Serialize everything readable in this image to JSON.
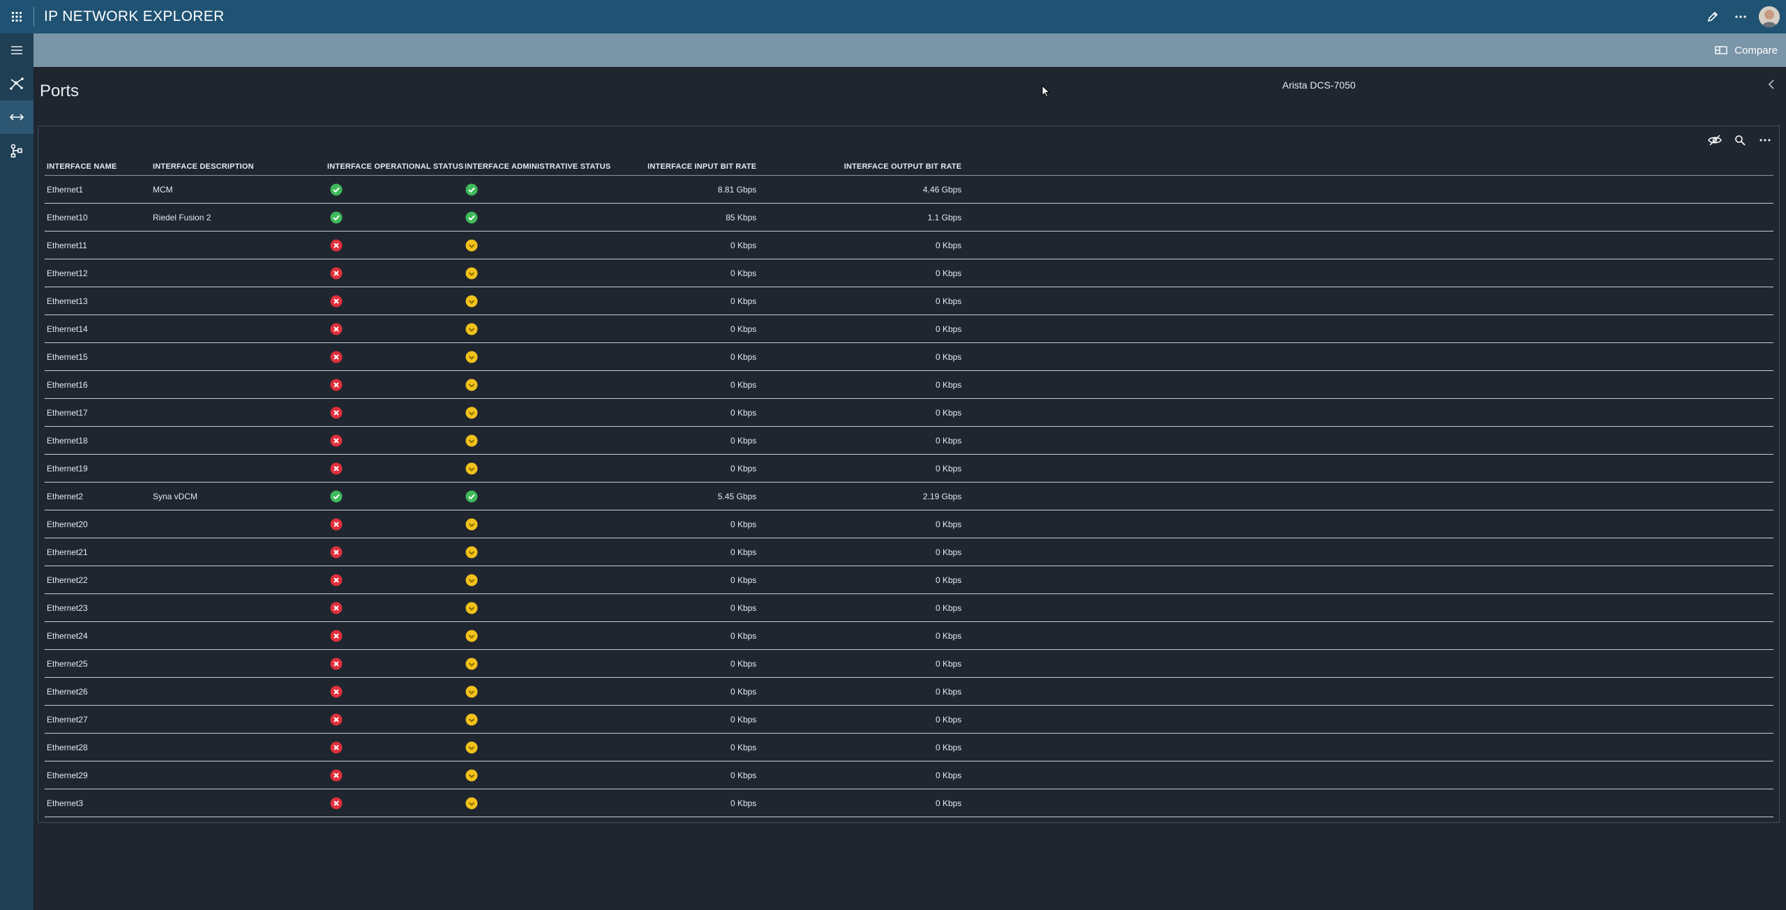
{
  "app": {
    "title": "IP NETWORK EXPLORER"
  },
  "topbar": {
    "icons": [
      "apps-icon",
      "edit-icon",
      "more-icon",
      "avatar"
    ]
  },
  "sidenav": {
    "items": [
      {
        "name": "topology-icon",
        "active": false
      },
      {
        "name": "ports-icon",
        "active": true
      },
      {
        "name": "hierarchy-icon",
        "active": false
      }
    ]
  },
  "subbar": {
    "compare_label": "Compare"
  },
  "page": {
    "title": "Ports",
    "device": "Arista DCS-7050"
  },
  "table": {
    "columns": {
      "name": "INTERFACE NAME",
      "description": "INTERFACE DESCRIPTION",
      "oper_status": "INTERFACE OPERATIONAL STATUS",
      "admin_status": "INTERFACE ADMINISTRATIVE STATUS",
      "input_rate": "INTERFACE INPUT BIT RATE",
      "output_rate": "INTERFACE OUTPUT BIT RATE"
    },
    "rows": [
      {
        "name": "Ethernet1",
        "description": "MCM",
        "oper": "up",
        "admin": "up",
        "input": "8.81 Gbps",
        "output": "4.46 Gbps"
      },
      {
        "name": "Ethernet10",
        "description": "Riedel Fusion 2",
        "oper": "up",
        "admin": "up",
        "input": "85 Kbps",
        "output": "1.1 Gbps"
      },
      {
        "name": "Ethernet11",
        "description": "",
        "oper": "down",
        "admin": "warn",
        "input": "0 Kbps",
        "output": "0 Kbps"
      },
      {
        "name": "Ethernet12",
        "description": "",
        "oper": "down",
        "admin": "warn",
        "input": "0 Kbps",
        "output": "0 Kbps"
      },
      {
        "name": "Ethernet13",
        "description": "",
        "oper": "down",
        "admin": "warn",
        "input": "0 Kbps",
        "output": "0 Kbps"
      },
      {
        "name": "Ethernet14",
        "description": "",
        "oper": "down",
        "admin": "warn",
        "input": "0 Kbps",
        "output": "0 Kbps"
      },
      {
        "name": "Ethernet15",
        "description": "",
        "oper": "down",
        "admin": "warn",
        "input": "0 Kbps",
        "output": "0 Kbps"
      },
      {
        "name": "Ethernet16",
        "description": "",
        "oper": "down",
        "admin": "warn",
        "input": "0 Kbps",
        "output": "0 Kbps"
      },
      {
        "name": "Ethernet17",
        "description": "",
        "oper": "down",
        "admin": "warn",
        "input": "0 Kbps",
        "output": "0 Kbps"
      },
      {
        "name": "Ethernet18",
        "description": "",
        "oper": "down",
        "admin": "warn",
        "input": "0 Kbps",
        "output": "0 Kbps"
      },
      {
        "name": "Ethernet19",
        "description": "",
        "oper": "down",
        "admin": "warn",
        "input": "0 Kbps",
        "output": "0 Kbps"
      },
      {
        "name": "Ethernet2",
        "description": "Syna vDCM",
        "oper": "up",
        "admin": "up",
        "input": "5.45 Gbps",
        "output": "2.19 Gbps"
      },
      {
        "name": "Ethernet20",
        "description": "",
        "oper": "down",
        "admin": "warn",
        "input": "0 Kbps",
        "output": "0 Kbps"
      },
      {
        "name": "Ethernet21",
        "description": "",
        "oper": "down",
        "admin": "warn",
        "input": "0 Kbps",
        "output": "0 Kbps"
      },
      {
        "name": "Ethernet22",
        "description": "",
        "oper": "down",
        "admin": "warn",
        "input": "0 Kbps",
        "output": "0 Kbps"
      },
      {
        "name": "Ethernet23",
        "description": "",
        "oper": "down",
        "admin": "warn",
        "input": "0 Kbps",
        "output": "0 Kbps"
      },
      {
        "name": "Ethernet24",
        "description": "",
        "oper": "down",
        "admin": "warn",
        "input": "0 Kbps",
        "output": "0 Kbps"
      },
      {
        "name": "Ethernet25",
        "description": "",
        "oper": "down",
        "admin": "warn",
        "input": "0 Kbps",
        "output": "0 Kbps"
      },
      {
        "name": "Ethernet26",
        "description": "",
        "oper": "down",
        "admin": "warn",
        "input": "0 Kbps",
        "output": "0 Kbps"
      },
      {
        "name": "Ethernet27",
        "description": "",
        "oper": "down",
        "admin": "warn",
        "input": "0 Kbps",
        "output": "0 Kbps"
      },
      {
        "name": "Ethernet28",
        "description": "",
        "oper": "down",
        "admin": "warn",
        "input": "0 Kbps",
        "output": "0 Kbps"
      },
      {
        "name": "Ethernet29",
        "description": "",
        "oper": "down",
        "admin": "warn",
        "input": "0 Kbps",
        "output": "0 Kbps"
      },
      {
        "name": "Ethernet3",
        "description": "",
        "oper": "down",
        "admin": "warn",
        "input": "0 Kbps",
        "output": "0 Kbps"
      }
    ]
  },
  "colors": {
    "topbar": "#1f5273",
    "sidenav": "#1f3f55",
    "subbar": "#7a95a8",
    "background": "#1f2630",
    "status_up": "#3fba5a",
    "status_down": "#e0303a",
    "status_warn": "#f2c21b"
  }
}
